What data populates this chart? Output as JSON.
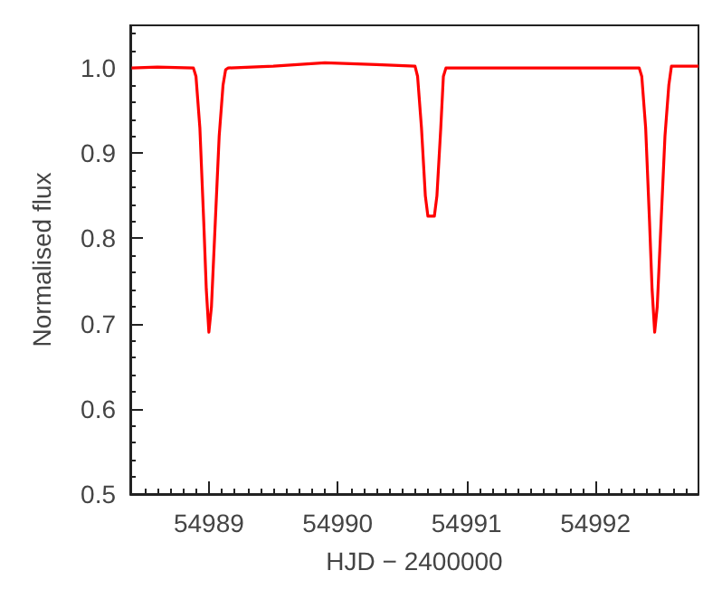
{
  "chart_data": {
    "type": "line",
    "xlabel": "HJD − 2400000",
    "ylabel": "Normalised flux",
    "xlim": [
      54988.39,
      54992.8
    ],
    "xticks": [
      54989,
      54990,
      54991,
      54992
    ],
    "ylim": [
      0.5,
      1.05
    ],
    "yticks": [
      0.5,
      0.6,
      0.7,
      0.8,
      0.9,
      {
        "value": 1,
        "label": "1.0"
      }
    ],
    "grid": false,
    "marker": "none",
    "line_style": "solid",
    "series": [
      {
        "color": "#ff0000",
        "x": [
          54988.4,
          54988.6,
          54988.88,
          54988.9,
          54988.93,
          54988.96,
          54988.98,
          54989.0,
          54989.02,
          54989.05,
          54989.08,
          54989.11,
          54989.13,
          54989.15,
          54989.5,
          54989.9,
          54990.3,
          54990.6,
          54990.62,
          54990.65,
          54990.68,
          54990.7,
          54990.75,
          54990.77,
          54990.8,
          54990.82,
          54990.84,
          54991.5,
          54992.34,
          54992.36,
          54992.39,
          54992.42,
          54992.44,
          54992.46,
          54992.48,
          54992.51,
          54992.54,
          54992.57,
          54992.59,
          54992.8
        ],
        "values": [
          1.0,
          1.001,
          1.0,
          0.99,
          0.93,
          0.82,
          0.74,
          0.69,
          0.72,
          0.82,
          0.92,
          0.98,
          0.998,
          1.0,
          1.002,
          1.006,
          1.004,
          1.002,
          0.99,
          0.93,
          0.85,
          0.826,
          0.826,
          0.85,
          0.93,
          0.99,
          1.0,
          1.0,
          1.0,
          0.99,
          0.93,
          0.82,
          0.74,
          0.69,
          0.72,
          0.82,
          0.92,
          0.98,
          1.002,
          1.002
        ]
      }
    ]
  }
}
